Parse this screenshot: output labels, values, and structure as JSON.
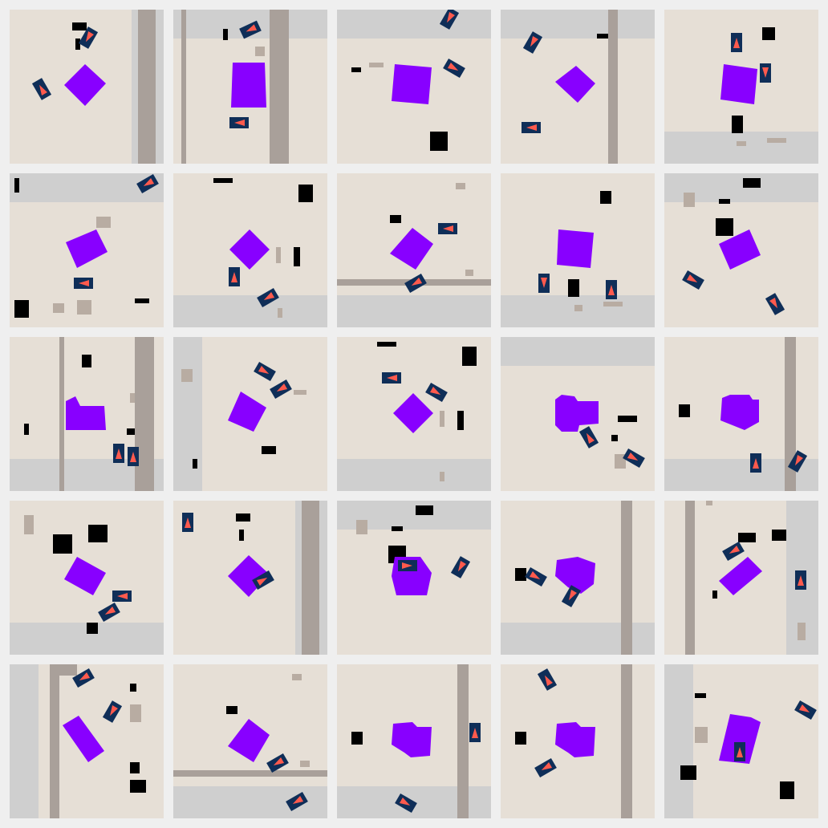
{
  "colors": {
    "background": "#efefef",
    "tile": "#e6dfd6",
    "road": "#cfcfcf",
    "path": "#a9a09a",
    "stone": "#b8aca2",
    "obstacle": "#000000",
    "agent": "#8800ff",
    "car_body": "#0f2e58",
    "car_arrow": "#ff5a4d"
  },
  "grid": {
    "rows": 5,
    "cols": 5
  },
  "icons": {
    "car": "arrow-car-icon",
    "agent": "purple-blob-agent"
  }
}
